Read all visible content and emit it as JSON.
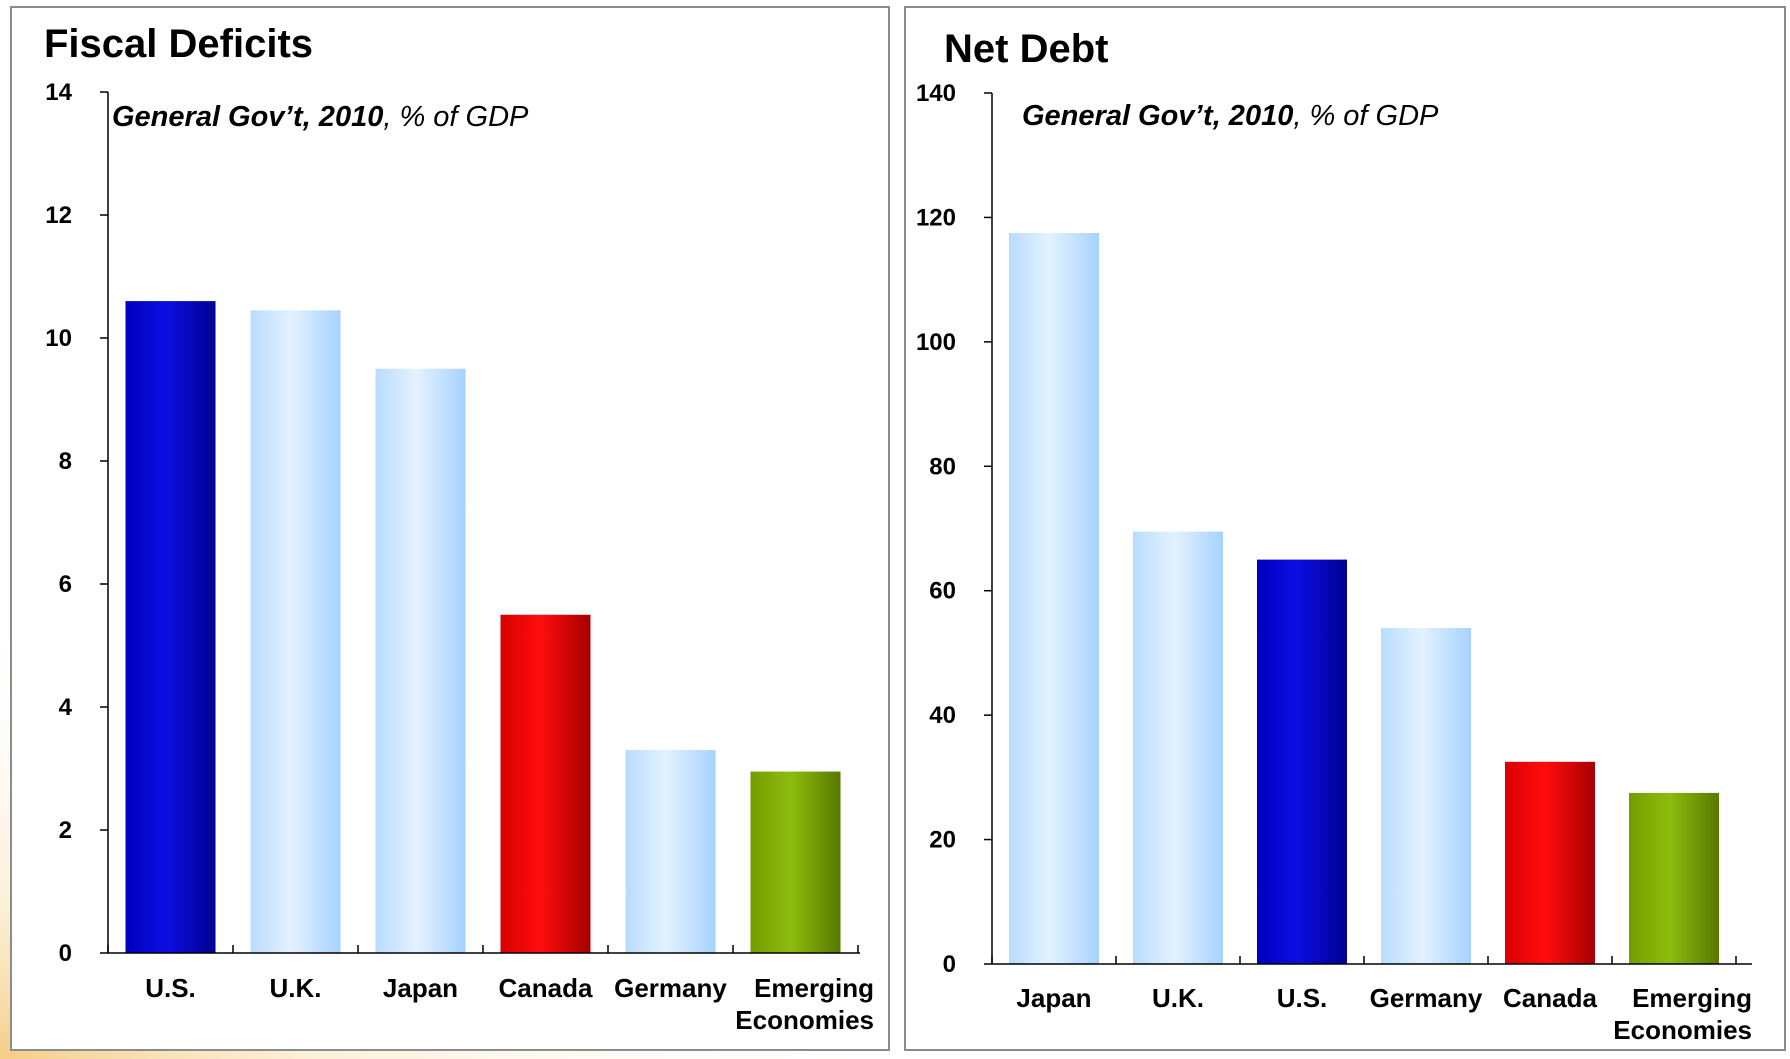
{
  "colors": {
    "us": "#0000e0",
    "canada": "#ff0000",
    "emerging": "#88b800",
    "other": "#b8dcff",
    "axis": "#000000",
    "frame": "#8c8c8c"
  },
  "chart_data": [
    {
      "type": "bar",
      "title": "Fiscal Deficits",
      "subtitle_bold": "General Gov’t, 2010",
      "subtitle_rest": ",  % of GDP",
      "categories": [
        "U.S.",
        "U.K.",
        "Japan",
        "Canada",
        "Germany",
        "Emerging Economies"
      ],
      "category_lines": [
        [
          "U.S."
        ],
        [
          "U.K."
        ],
        [
          "Japan"
        ],
        [
          "Canada"
        ],
        [
          "Germany"
        ],
        [
          "Emerging",
          "Economies"
        ]
      ],
      "values": [
        10.6,
        10.45,
        9.5,
        5.5,
        3.3,
        2.95
      ],
      "bar_colors": [
        "us",
        "other",
        "other",
        "canada",
        "other",
        "emerging"
      ],
      "ylim": [
        0,
        14
      ],
      "yticks": [
        0,
        2,
        4,
        6,
        8,
        10,
        12,
        14
      ],
      "xlabel": "",
      "ylabel": "",
      "grid": false
    },
    {
      "type": "bar",
      "title": "Net Debt",
      "subtitle_bold": "General Gov’t, 2010",
      "subtitle_rest": ", % of GDP",
      "categories": [
        "Japan",
        "U.K.",
        "U.S.",
        "Germany",
        "Canada",
        "Emerging Economies"
      ],
      "category_lines": [
        [
          "Japan"
        ],
        [
          "U.K."
        ],
        [
          "U.S."
        ],
        [
          "Germany"
        ],
        [
          "Canada"
        ],
        [
          "Emerging",
          "Economies"
        ]
      ],
      "values": [
        117.5,
        69.5,
        65,
        54,
        32.5,
        27.5
      ],
      "bar_colors": [
        "other",
        "other",
        "us",
        "other",
        "canada",
        "emerging"
      ],
      "ylim": [
        0,
        140
      ],
      "yticks": [
        0,
        20,
        40,
        60,
        80,
        100,
        120,
        140
      ],
      "xlabel": "",
      "ylabel": "",
      "grid": false
    }
  ]
}
